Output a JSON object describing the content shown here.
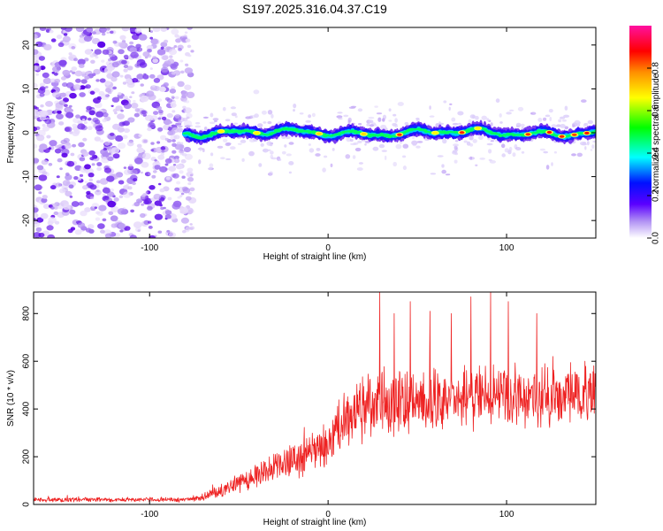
{
  "title": "S197.2025.316.04.37.C19",
  "chart_data": [
    {
      "type": "heatmap",
      "title": "S197.2025.316.04.37.C19",
      "xlabel": "Height of straight line (km)",
      "ylabel": "Frequency (Hz)",
      "xlim": [
        -165,
        150
      ],
      "ylim": [
        -24,
        24
      ],
      "xticks": [
        -100,
        0,
        100
      ],
      "yticks": [
        -20,
        -10,
        0,
        10,
        20
      ],
      "noise_region_x": [
        -165,
        -80
      ],
      "signal_x_range": [
        -80,
        150
      ],
      "signal_freq_hz": 0,
      "colorbar": {
        "label": "Normalized spectral amplitude",
        "range": [
          0.0,
          1.0
        ],
        "ticks": [
          "0.0",
          "0.2",
          "0.4",
          "0.6",
          "0.8"
        ],
        "colors": [
          "#ffffff",
          "#a070f0",
          "#0000ff",
          "#00ffff",
          "#00ff00",
          "#ffff00",
          "#ff8000",
          "#ff0000",
          "#ff00a0"
        ]
      }
    },
    {
      "type": "line",
      "xlabel": "Height of straight line (km)",
      "ylabel": "SNR (10 * v/v)",
      "xlim": [
        -165,
        150
      ],
      "ylim": [
        0,
        890
      ],
      "xticks": [
        -100,
        0,
        100
      ],
      "yticks": [
        0,
        200,
        400,
        600,
        800
      ],
      "color": "#ee2222",
      "trend": {
        "x": [
          -165,
          -80,
          -70,
          -55,
          -40,
          -25,
          -10,
          0,
          7,
          15,
          30,
          50,
          70,
          90,
          110,
          130,
          150
        ],
        "mean": [
          20,
          20,
          30,
          70,
          120,
          170,
          210,
          240,
          310,
          380,
          420,
          430,
          440,
          445,
          445,
          450,
          460
        ],
        "spread": [
          8,
          8,
          15,
          30,
          45,
          55,
          70,
          80,
          100,
          110,
          110,
          110,
          110,
          105,
          105,
          100,
          100
        ]
      },
      "spikes": [
        {
          "x": 29,
          "y": 890
        },
        {
          "x": 37,
          "y": 800
        },
        {
          "x": 46,
          "y": 850
        },
        {
          "x": 57,
          "y": 810
        },
        {
          "x": 69,
          "y": 800
        },
        {
          "x": 80,
          "y": 870
        },
        {
          "x": 91,
          "y": 890
        },
        {
          "x": 101,
          "y": 850
        },
        {
          "x": 117,
          "y": 800
        },
        {
          "x": 126,
          "y": 620
        },
        {
          "x": 144,
          "y": 600
        }
      ]
    }
  ]
}
